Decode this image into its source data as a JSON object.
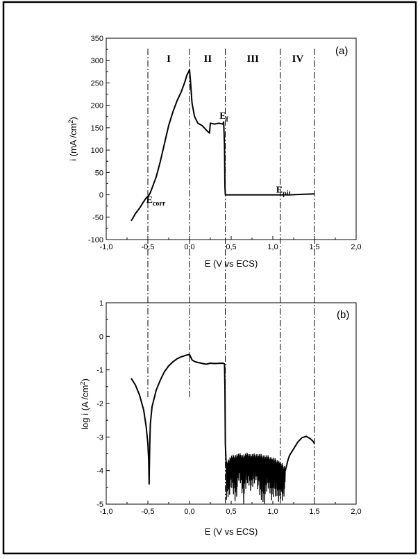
{
  "chart_data": [
    {
      "id": "a",
      "type": "line",
      "panel_label": "(a)",
      "xlabel": "E (V vs ECS)",
      "ylabel": "i (mA /cm",
      "ylabel_sup": "2",
      "ylabel_end": ")",
      "xlim": [
        -1.0,
        2.0
      ],
      "ylim": [
        -100,
        350
      ],
      "xticks": [
        -1.0,
        -0.5,
        0.0,
        0.5,
        1.0,
        1.5,
        2.0
      ],
      "xtick_labels": [
        "-1,0",
        "-0,5",
        "0,0",
        "0,5",
        "1,0",
        "1,5",
        "2,0"
      ],
      "yticks": [
        -100,
        -50,
        0,
        50,
        100,
        150,
        200,
        250,
        300,
        350
      ],
      "ytick_labels": [
        "-100",
        "-50",
        "0",
        "50",
        "100",
        "150",
        "200",
        "250",
        "300",
        "350"
      ],
      "regions": [
        "I",
        "II",
        "III",
        "IV"
      ],
      "annotations": [
        {
          "name": "ecorr",
          "main": "E",
          "sub": "corr",
          "x": -0.52,
          "y": -18
        },
        {
          "name": "ef",
          "main": "E",
          "sub": "f",
          "x": 0.36,
          "y": 170
        },
        {
          "name": "epit",
          "main": "E",
          "sub": "pit",
          "x": 1.04,
          "y": 5
        }
      ],
      "series": [
        {
          "x": [
            -0.7,
            -0.68,
            -0.65,
            -0.6,
            -0.55,
            -0.52,
            -0.49,
            -0.47,
            -0.44,
            -0.4,
            -0.35,
            -0.3,
            -0.25,
            -0.2,
            -0.15,
            -0.1,
            -0.06,
            -0.03,
            -0.01,
            0.0,
            0.01,
            0.03,
            0.06,
            0.1,
            0.15,
            0.2,
            0.24,
            0.25,
            0.3,
            0.35,
            0.4,
            0.41,
            0.42,
            0.425,
            0.43,
            0.5,
            0.7,
            1.0,
            1.2,
            1.35,
            1.5
          ],
          "y": [
            -58,
            -52,
            -42,
            -30,
            -15,
            -7,
            -2,
            5,
            20,
            40,
            75,
            115,
            155,
            185,
            210,
            230,
            250,
            268,
            275,
            280,
            258,
            205,
            175,
            160,
            155,
            145,
            138,
            160,
            158,
            160,
            158,
            163,
            110,
            20,
            0,
            0,
            0,
            0,
            0,
            1,
            2
          ]
        }
      ]
    },
    {
      "id": "b",
      "type": "line",
      "panel_label": "(b)",
      "xlabel": "E (V vs ECS)",
      "ylabel": "log i (A /cm",
      "ylabel_sup": "2",
      "ylabel_end": ")",
      "xlim": [
        -1.0,
        2.0
      ],
      "ylim": [
        -5,
        1
      ],
      "xticks": [
        -1.0,
        -0.5,
        0.0,
        0.5,
        1.0,
        1.5,
        2.0
      ],
      "xtick_labels": [
        "-1,0",
        "-0,5",
        "0,0",
        "0,5",
        "1,0",
        "1,5",
        "2,0"
      ],
      "yticks": [
        -5,
        -4,
        -3,
        -2,
        -1,
        0,
        1
      ],
      "ytick_labels": [
        "-5",
        "-4",
        "-3",
        "-2",
        "-1",
        "0",
        "1"
      ],
      "series": [
        {
          "x": [
            -0.7,
            -0.65,
            -0.6,
            -0.55,
            -0.52,
            -0.5,
            -0.49,
            -0.485,
            -0.48,
            -0.475,
            -0.47,
            -0.45,
            -0.4,
            -0.35,
            -0.3,
            -0.25,
            -0.2,
            -0.15,
            -0.1,
            -0.05,
            0.0,
            0.03,
            0.06,
            0.1,
            0.2,
            0.25,
            0.3,
            0.4,
            0.42,
            0.425,
            0.43,
            0.44
          ],
          "y": [
            -1.25,
            -1.45,
            -1.75,
            -2.2,
            -2.7,
            -3.2,
            -3.7,
            -4.4,
            -3.6,
            -3.0,
            -2.6,
            -2.1,
            -1.6,
            -1.3,
            -1.05,
            -0.88,
            -0.76,
            -0.67,
            -0.61,
            -0.57,
            -0.54,
            -0.7,
            -0.75,
            -0.78,
            -0.83,
            -0.8,
            -0.81,
            -0.8,
            -0.82,
            -1.5,
            -3.2,
            -3.8
          ]
        },
        {
          "x": [
            0.44,
            0.5,
            0.55,
            0.6,
            0.65,
            0.7,
            0.75,
            0.8,
            0.85,
            0.9,
            0.95,
            1.0,
            1.05,
            1.08,
            1.1,
            1.12,
            1.15
          ],
          "y_upper": [
            -3.7,
            -3.55,
            -3.5,
            -3.48,
            -3.5,
            -3.46,
            -3.5,
            -3.48,
            -3.5,
            -3.52,
            -3.55,
            -3.6,
            -3.65,
            -3.7,
            -3.75,
            -3.8,
            -3.85
          ],
          "y_lower": [
            -5.0,
            -4.6,
            -5.0,
            -4.3,
            -5.0,
            -4.4,
            -4.7,
            -4.3,
            -5.0,
            -5.0,
            -4.6,
            -5.0,
            -4.8,
            -5.0,
            -5.0,
            -5.0,
            -4.6
          ]
        },
        {
          "x": [
            1.15,
            1.18,
            1.2,
            1.25,
            1.3,
            1.35,
            1.4,
            1.45,
            1.48,
            1.5
          ],
          "y": [
            -4.0,
            -3.7,
            -3.55,
            -3.35,
            -3.15,
            -3.02,
            -2.98,
            -3.05,
            -3.12,
            -3.2
          ]
        }
      ]
    }
  ]
}
